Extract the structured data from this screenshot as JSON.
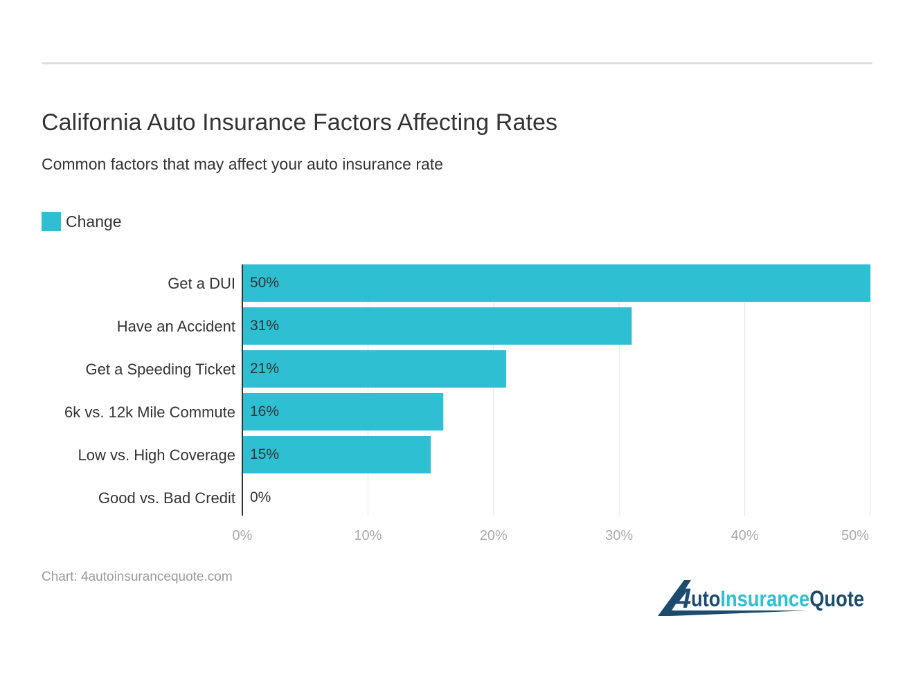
{
  "header": {
    "title": "California Auto Insurance Factors Affecting Rates",
    "subtitle": "Common factors that may affect your auto insurance rate"
  },
  "footer": {
    "source": "Chart: 4autoinsurancequote.com"
  },
  "logo": {
    "text": "4AutoInsuranceQuote",
    "colors": {
      "dark": "#1d4b6e",
      "light": "#2ebfd3"
    }
  },
  "chart_data": {
    "type": "bar",
    "orientation": "horizontal",
    "title": "California Auto Insurance Factors Affecting Rates",
    "subtitle": "Common factors that may affect your auto insurance rate",
    "categories": [
      "Get a DUI",
      "Have an Accident",
      "Get a Speeding Ticket",
      "6k vs. 12k Mile Commute",
      "Low vs. High Coverage",
      "Good vs. Bad Credit"
    ],
    "series": [
      {
        "name": "Change",
        "values": [
          50,
          31,
          21,
          16,
          15,
          0
        ],
        "labels": [
          "50%",
          "31%",
          "21%",
          "16%",
          "15%",
          "0%"
        ],
        "color": "#2ebfd3"
      }
    ],
    "xlim": [
      0,
      50
    ],
    "xticks": [
      "0%",
      "10%",
      "20%",
      "30%",
      "40%",
      "50%"
    ],
    "grid": true,
    "legend": "top-left"
  }
}
